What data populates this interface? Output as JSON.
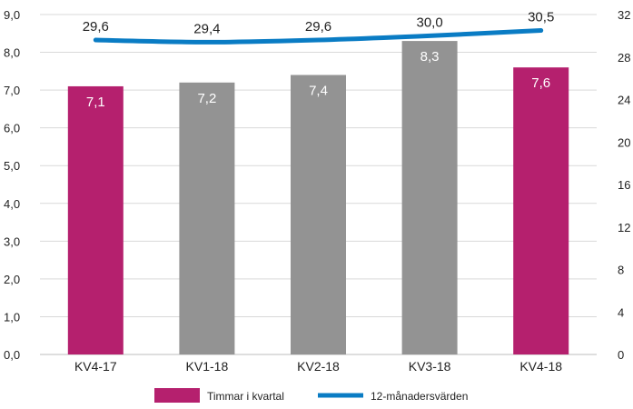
{
  "chart_data": {
    "type": "bar",
    "categories": [
      "KV4-17",
      "KV1-18",
      "KV2-18",
      "KV3-18",
      "KV4-18"
    ],
    "series": [
      {
        "name": "Timmar i kvartal",
        "type": "bar",
        "axis": "left",
        "values": [
          7.1,
          7.2,
          7.4,
          8.3,
          7.6
        ],
        "value_labels": [
          "7,1",
          "7,2",
          "7,4",
          "8,3",
          "7,6"
        ],
        "colors": [
          "#b5206e",
          "#939393",
          "#939393",
          "#939393",
          "#b5206e"
        ]
      },
      {
        "name": "12-månadersvärden",
        "type": "line",
        "axis": "right",
        "values": [
          29.6,
          29.4,
          29.6,
          30.0,
          30.5
        ],
        "value_labels": [
          "29,6",
          "29,4",
          "29,6",
          "30,0",
          "30,5"
        ],
        "color": "#0a7cc4"
      }
    ],
    "left_axis": {
      "ylim": [
        0,
        9
      ],
      "ticks": [
        0,
        1,
        2,
        3,
        4,
        5,
        6,
        7,
        8,
        9
      ],
      "tick_labels": [
        "0,0",
        "1,0",
        "2,0",
        "3,0",
        "4,0",
        "5,0",
        "6,0",
        "7,0",
        "8,0",
        "9,0"
      ]
    },
    "right_axis": {
      "ylim": [
        0,
        32
      ],
      "ticks": [
        0,
        4,
        8,
        12,
        16,
        20,
        24,
        28,
        32
      ],
      "tick_labels": [
        "0",
        "4",
        "8",
        "12",
        "16",
        "20",
        "24",
        "28",
        "32"
      ]
    },
    "grid": true,
    "legend": {
      "placement": "bottom",
      "items": [
        "Timmar i kvartal",
        "12-månadersvärden"
      ]
    }
  }
}
